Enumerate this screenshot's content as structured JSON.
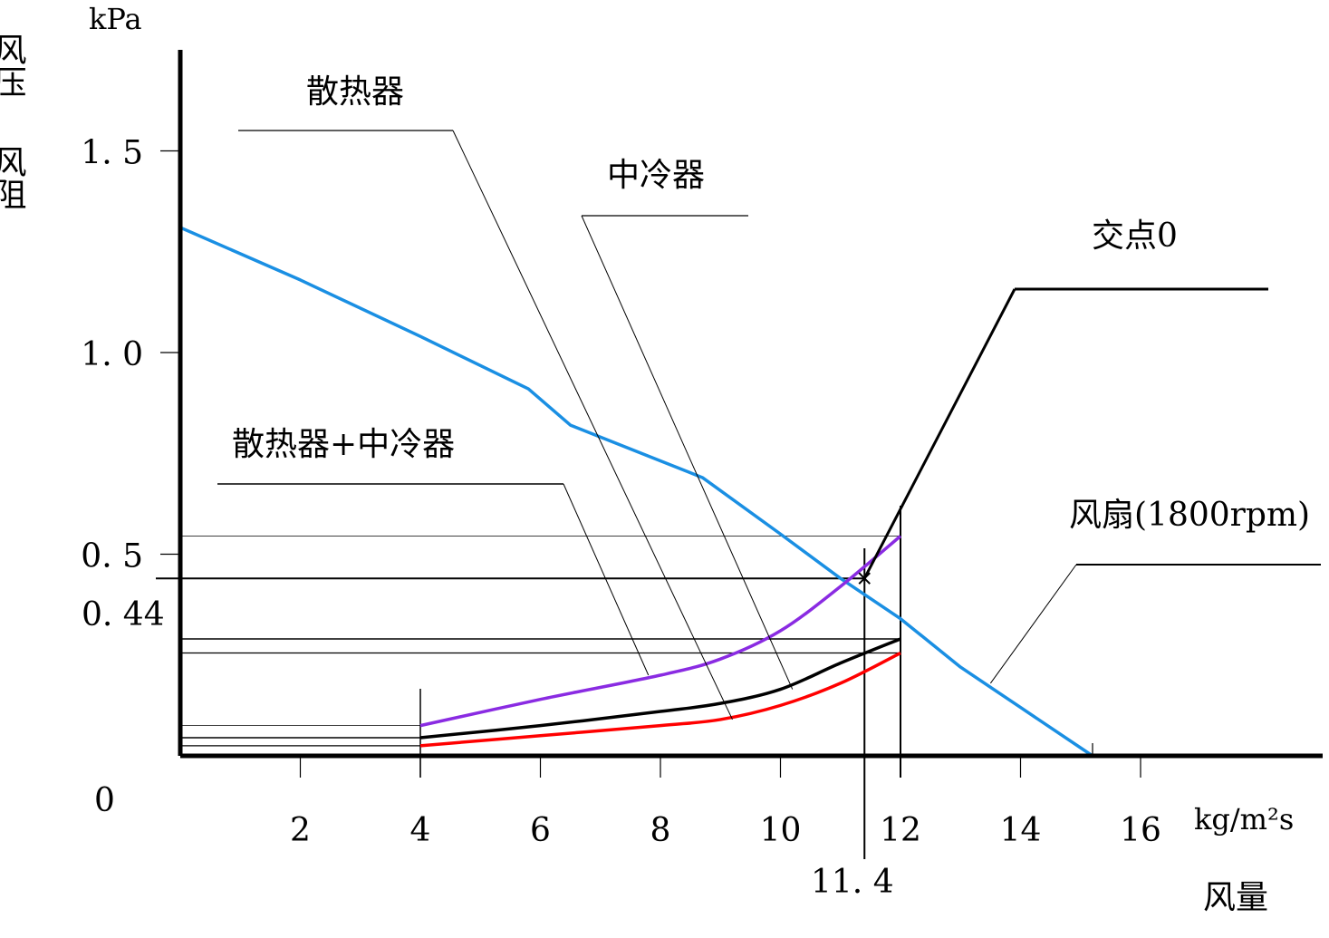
{
  "chart_data": {
    "type": "line",
    "y_title": {
      "line1": "风压",
      "line2": "风阻"
    },
    "y_unit": "kPa",
    "x_unit": "kg/m²s",
    "x_title": "风量",
    "origin_label": "0",
    "xlim": [
      0,
      18
    ],
    "ylim": [
      0,
      1.8
    ],
    "x_ticks": [
      {
        "value": 2,
        "label": "2"
      },
      {
        "value": 4,
        "label": "4"
      },
      {
        "value": 6,
        "label": "6"
      },
      {
        "value": 8,
        "label": "8"
      },
      {
        "value": 10,
        "label": "10"
      },
      {
        "value": 12,
        "label": "12"
      },
      {
        "value": 14,
        "label": "14"
      },
      {
        "value": 16,
        "label": "16"
      }
    ],
    "y_ticks": [
      {
        "value": 0.5,
        "label": "0. 5"
      },
      {
        "value": 1.0,
        "label": "1. 0"
      },
      {
        "value": 1.5,
        "label": "1. 5"
      }
    ],
    "intersection": {
      "x": 11.4,
      "y": 0.44,
      "x_label": "11. 4",
      "y_label": "0. 44"
    },
    "series": [
      {
        "key": "fan",
        "name": "风扇(1800rpm)",
        "color": "#1a8fe3",
        "x": [
          0,
          2,
          4,
          5.8,
          6.5,
          8.7,
          10,
          11,
          12,
          13,
          14,
          15.2
        ],
        "y": [
          1.31,
          1.18,
          1.04,
          0.91,
          0.82,
          0.69,
          0.55,
          0.44,
          0.34,
          0.22,
          0.12,
          0.0
        ]
      },
      {
        "key": "combined",
        "name": "散热器+中冷器",
        "color": "#8a2be2",
        "x": [
          4,
          6,
          8,
          9,
          10,
          11,
          12
        ],
        "y": [
          0.075,
          0.14,
          0.2,
          0.24,
          0.31,
          0.42,
          0.545
        ]
      },
      {
        "key": "intercooler",
        "name": "中冷器",
        "color": "#000000",
        "x": [
          4,
          6,
          8,
          9,
          10,
          11,
          12
        ],
        "y": [
          0.045,
          0.075,
          0.11,
          0.13,
          0.165,
          0.23,
          0.29
        ]
      },
      {
        "key": "radiator",
        "name": "散热器",
        "color": "#ff0000",
        "x": [
          4,
          6,
          8,
          9,
          10,
          11,
          12
        ],
        "y": [
          0.025,
          0.05,
          0.075,
          0.09,
          0.125,
          0.18,
          0.255
        ]
      }
    ],
    "annotations": [
      {
        "key": "radiator",
        "label": "散热器",
        "anchor_x": 9.2,
        "anchor_y": 0.09
      },
      {
        "key": "intercooler",
        "label": "中冷器",
        "anchor_x": 10.2,
        "anchor_y": 0.165
      },
      {
        "key": "combined",
        "label": "散热器+中冷器",
        "anchor_x": 7.8,
        "anchor_y": 0.2
      },
      {
        "key": "fan",
        "label": "风扇(1800rpm)",
        "anchor_x": 13.5,
        "anchor_y": 0.18
      },
      {
        "key": "point",
        "label": "交点0",
        "anchor_x": 11.4,
        "anchor_y": 0.44
      }
    ]
  }
}
